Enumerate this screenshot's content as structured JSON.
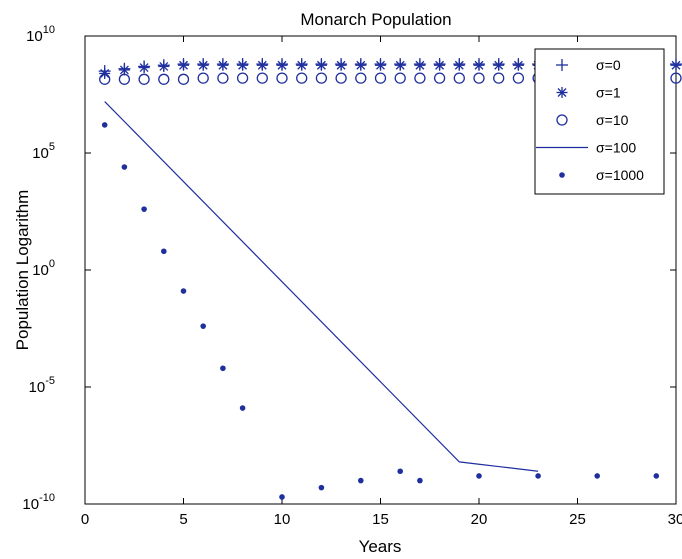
{
  "chart_data": {
    "type": "scatter",
    "title": "Monarch Population",
    "xlabel": "Years",
    "ylabel": "Population Logarithm",
    "xlim": [
      0,
      30
    ],
    "ylim_exponent": [
      -10,
      10
    ],
    "y_scale": "log",
    "x_ticks": [
      {
        "value": 0,
        "label": "0"
      },
      {
        "value": 5,
        "label": "5"
      },
      {
        "value": 10,
        "label": "10"
      },
      {
        "value": 15,
        "label": "15"
      },
      {
        "value": 20,
        "label": "20"
      },
      {
        "value": 25,
        "label": "25"
      },
      {
        "value": 30,
        "label": "30"
      }
    ],
    "y_ticks": [
      {
        "exponent": 10,
        "base": "10",
        "exp": "10"
      },
      {
        "exponent": 5,
        "base": "10",
        "exp": "5"
      },
      {
        "exponent": 0,
        "base": "10",
        "exp": "0"
      },
      {
        "exponent": -5,
        "base": "10",
        "exp": "-5"
      },
      {
        "exponent": -10,
        "base": "10",
        "exp": "-10"
      }
    ],
    "grid": false,
    "legend_position": "top-right",
    "series": [
      {
        "name": "σ=0",
        "marker": "plus",
        "color": "#1f2f9e",
        "x": [
          1,
          2,
          3,
          4,
          5,
          6,
          7,
          8,
          9,
          10,
          11,
          12,
          13,
          14,
          15,
          16,
          17,
          18,
          19,
          20,
          21,
          22,
          23,
          24,
          25,
          26,
          27,
          28,
          29,
          30
        ],
        "log10_y": [
          8.5,
          8.6,
          8.7,
          8.75,
          8.8,
          8.8,
          8.8,
          8.8,
          8.8,
          8.8,
          8.8,
          8.8,
          8.8,
          8.8,
          8.8,
          8.8,
          8.8,
          8.8,
          8.8,
          8.8,
          8.8,
          8.8,
          8.8,
          8.8,
          8.8,
          8.8,
          8.8,
          8.8,
          8.8,
          8.8
        ]
      },
      {
        "name": "σ=1",
        "marker": "asterisk",
        "color": "#1f2f9e",
        "x": [
          1,
          2,
          3,
          4,
          5,
          6,
          7,
          8,
          9,
          10,
          11,
          12,
          13,
          14,
          15,
          16,
          17,
          18,
          19,
          20,
          21,
          22,
          23,
          24,
          25,
          26,
          27,
          28,
          29,
          30
        ],
        "log10_y": [
          8.4,
          8.55,
          8.65,
          8.7,
          8.75,
          8.75,
          8.75,
          8.75,
          8.75,
          8.75,
          8.75,
          8.75,
          8.75,
          8.75,
          8.75,
          8.75,
          8.75,
          8.75,
          8.75,
          8.75,
          8.75,
          8.75,
          8.75,
          8.75,
          8.75,
          8.75,
          8.75,
          8.75,
          8.75,
          8.75
        ]
      },
      {
        "name": "σ=10",
        "marker": "circle",
        "color": "#1f2f9e",
        "x": [
          1,
          2,
          3,
          4,
          5,
          6,
          7,
          8,
          9,
          10,
          11,
          12,
          13,
          14,
          15,
          16,
          17,
          18,
          19,
          20,
          21,
          22,
          23,
          24,
          25,
          26,
          27,
          28,
          29,
          30
        ],
        "log10_y": [
          8.15,
          8.15,
          8.15,
          8.15,
          8.15,
          8.2,
          8.2,
          8.2,
          8.2,
          8.2,
          8.2,
          8.2,
          8.2,
          8.2,
          8.2,
          8.2,
          8.2,
          8.2,
          8.2,
          8.2,
          8.2,
          8.2,
          8.2,
          8.2,
          8.2,
          8.2,
          8.2,
          8.2,
          8.2,
          8.2
        ]
      },
      {
        "name": "σ=100",
        "marker": "line",
        "color": "#1f2f9e",
        "x": [
          1,
          19,
          20,
          21,
          22,
          23
        ],
        "log10_y": [
          7.2,
          -8.2,
          -8.3,
          -8.4,
          -8.5,
          -8.6
        ]
      },
      {
        "name": "σ=1000",
        "marker": "dot",
        "color": "#1f2f9e",
        "x": [
          1,
          2,
          3,
          4,
          5,
          6,
          7,
          8,
          10,
          12,
          14,
          16,
          17,
          20,
          23,
          26,
          29
        ],
        "log10_y": [
          6.2,
          4.4,
          2.6,
          0.8,
          -0.9,
          -2.4,
          -4.2,
          -5.9,
          -9.7,
          -9.3,
          -9.0,
          -8.6,
          -9.0,
          -8.8,
          -8.8,
          -8.8,
          -8.8
        ]
      }
    ]
  }
}
